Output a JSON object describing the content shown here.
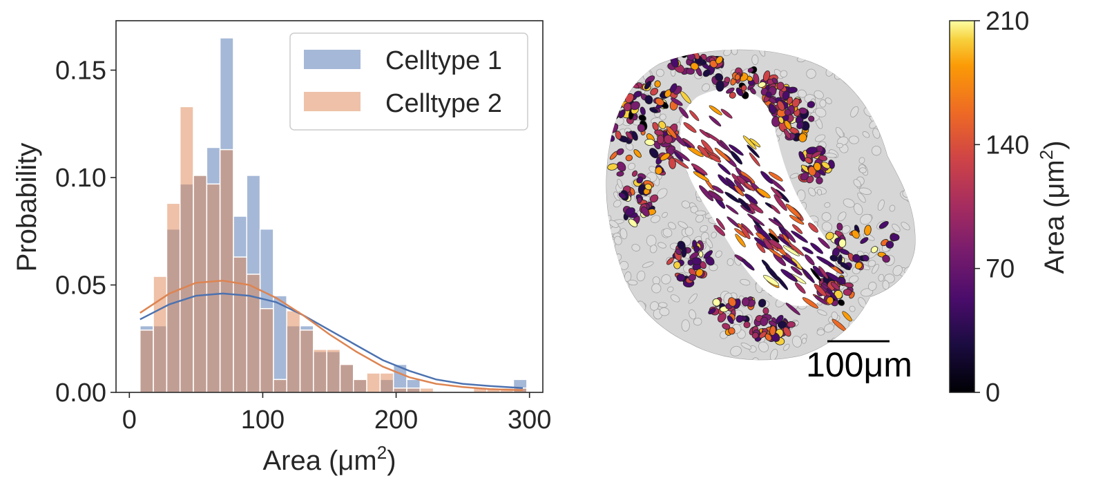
{
  "chart_data": [
    {
      "type": "bar",
      "subtype": "histogram-with-density",
      "xlabel_main": "Area (μm",
      "xlabel_sup": "2",
      "xlabel_end": ")",
      "ylabel": "Probability",
      "xlim": [
        -10,
        310
      ],
      "ylim": [
        0,
        0.173
      ],
      "bin_width": 10,
      "xticks": [
        {
          "value": 0,
          "label": "0"
        },
        {
          "value": 100,
          "label": "100"
        },
        {
          "value": 200,
          "label": "200"
        },
        {
          "value": 300,
          "label": "300"
        }
      ],
      "yticks": [
        {
          "value": 0,
          "label": "0.00"
        },
        {
          "value": 0.05,
          "label": "0.05"
        },
        {
          "value": 0.1,
          "label": "0.10"
        },
        {
          "value": 0.15,
          "label": "0.15"
        }
      ],
      "legend_position": "top-right",
      "grid": false,
      "series": [
        {
          "name": "Celltype 1",
          "bar_color": "#4c72b0",
          "line_color": "#4c72b0",
          "bin_starts": [
            8,
            18,
            28,
            38,
            48,
            58,
            68,
            78,
            88,
            98,
            108,
            118,
            128,
            138,
            148,
            158,
            168,
            178,
            188,
            198,
            208,
            218,
            228,
            238,
            248,
            258,
            268,
            278,
            288
          ],
          "values": [
            0.031,
            0.031,
            0.076,
            0.097,
            0.101,
            0.114,
            0.165,
            0.082,
            0.101,
            0.076,
            0.045,
            0.031,
            0.031,
            0.019,
            0.019,
            0.013,
            0.006,
            0.0,
            0.006,
            0.013,
            0.006,
            0.0,
            0.0,
            0.0,
            0.0,
            0.0,
            0.0,
            0.0,
            0.006
          ],
          "density_x": [
            8,
            30,
            50,
            70,
            90,
            110,
            130,
            150,
            170,
            190,
            210,
            230,
            250,
            270,
            295
          ],
          "density_y": [
            0.034,
            0.041,
            0.045,
            0.046,
            0.045,
            0.042,
            0.036,
            0.029,
            0.022,
            0.015,
            0.01,
            0.006,
            0.004,
            0.003,
            0.002
          ]
        },
        {
          "name": "Celltype 2",
          "bar_color": "#dd8452",
          "line_color": "#dd8452",
          "bin_starts": [
            8,
            18,
            28,
            38,
            48,
            58,
            68,
            78,
            88,
            98,
            108,
            118,
            128,
            138,
            148,
            158,
            168,
            178,
            188,
            198,
            208,
            218,
            228,
            238,
            248,
            258,
            268,
            278,
            288
          ],
          "values": [
            0.029,
            0.054,
            0.088,
            0.133,
            0.101,
            0.097,
            0.113,
            0.063,
            0.055,
            0.039,
            0.006,
            0.038,
            0.029,
            0.02,
            0.02,
            0.013,
            0.006,
            0.009,
            0.009,
            0.002,
            0.002,
            0.002,
            0.0,
            0.0,
            0.0,
            0.002,
            0.002,
            0.002,
            0.002
          ],
          "density_x": [
            8,
            30,
            50,
            70,
            90,
            110,
            130,
            150,
            170,
            190,
            210,
            230,
            250,
            270,
            295
          ],
          "density_y": [
            0.037,
            0.046,
            0.051,
            0.052,
            0.05,
            0.044,
            0.036,
            0.027,
            0.019,
            0.012,
            0.007,
            0.004,
            0.0025,
            0.0015,
            0.001
          ]
        }
      ]
    },
    {
      "type": "heatmap",
      "subtype": "spatial-cell-segmentation-map",
      "colormap": "inferno",
      "background_cell_color": "#dcdcdc",
      "scale_bar_label": "100μm",
      "colorbar_label_main": "Area (μm",
      "colorbar_label_sup": "2",
      "colorbar_label_end": ")",
      "colorbar_range": [
        0,
        210
      ],
      "colorbar_ticks": [
        {
          "value": 0,
          "label": "0"
        },
        {
          "value": 70,
          "label": "70"
        },
        {
          "value": 140,
          "label": "140"
        },
        {
          "value": 210,
          "label": "210"
        }
      ]
    }
  ]
}
